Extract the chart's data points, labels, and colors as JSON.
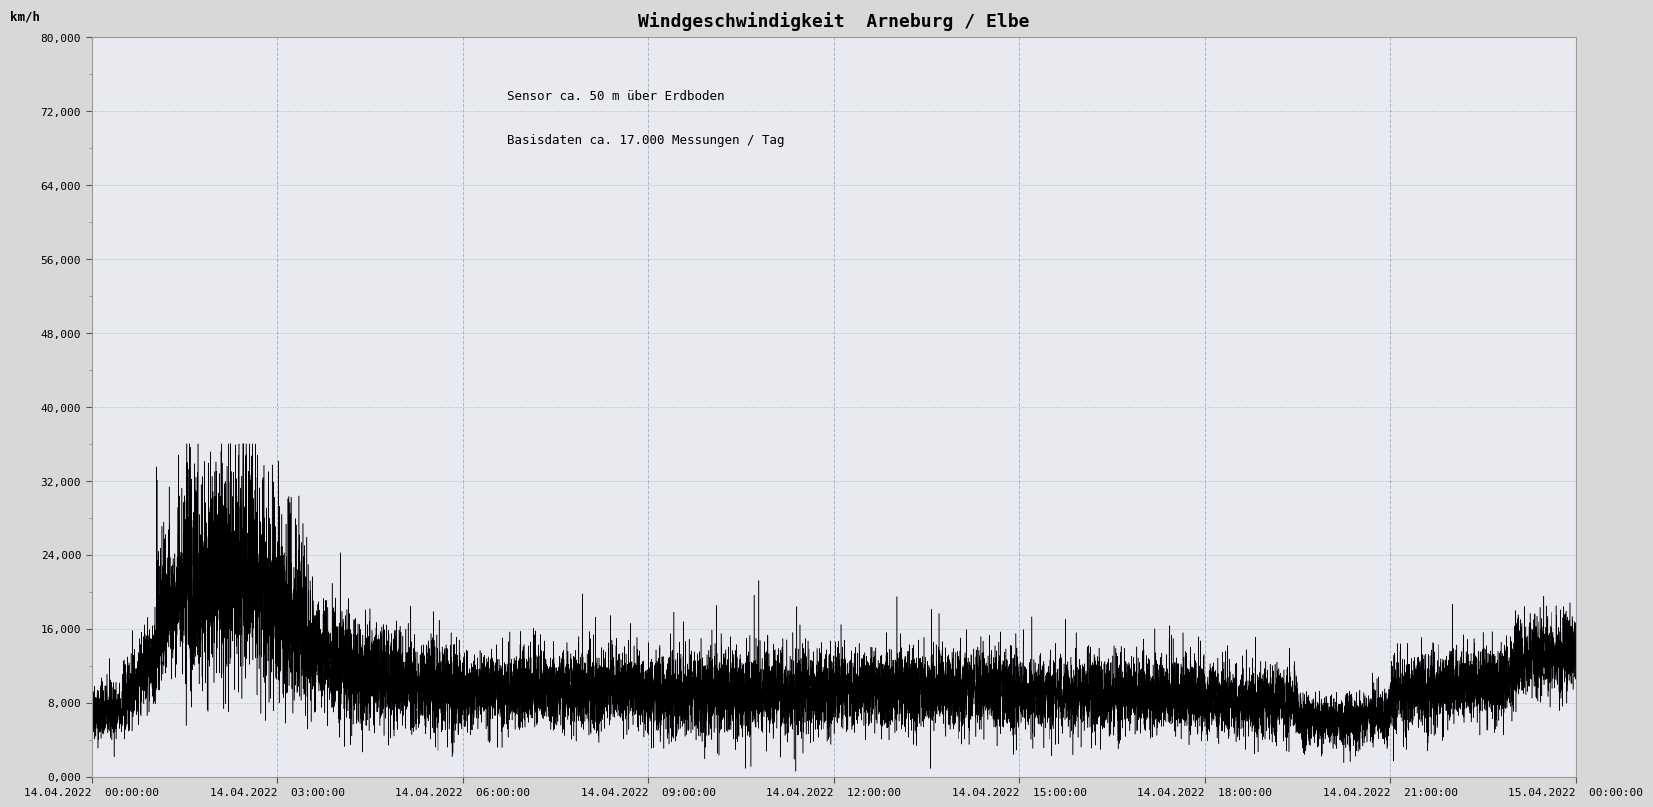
{
  "title": "Windgeschwindigkeit  Arneburg / Elbe",
  "annotation_line1": "Sensor ca. 50 m über Erdboden",
  "annotation_line2": "Basisdaten ca. 17.000 Messungen / Tag",
  "ylabel": "km/h",
  "ylim": [
    0,
    80000
  ],
  "yticks": [
    0,
    8000,
    16000,
    24000,
    32000,
    40000,
    48000,
    56000,
    64000,
    72000,
    80000
  ],
  "ytick_labels": [
    "0,000",
    "8,000",
    "16,000",
    "24,000",
    "32,000",
    "40,000",
    "48,000",
    "56,000",
    "64,000",
    "72,000",
    "80,000"
  ],
  "xtick_labels": [
    "14.04.2022  00:00:00",
    "14.04.2022  03:00:00",
    "14.04.2022  06:00:00",
    "14.04.2022  09:00:00",
    "14.04.2022  12:00:00",
    "14.04.2022  15:00:00",
    "14.04.2022  18:00:00",
    "14.04.2022  21:00:00",
    "15.04.2022  00:00:00"
  ],
  "n_points": 17280,
  "line_color": "#000000",
  "background_color": "#d8d8d8",
  "plot_bg_color": "#e8eaf0",
  "grid_color": "#a0a8b8",
  "title_fontsize": 13,
  "annotation_fontsize": 9,
  "tick_fontsize": 8,
  "ylabel_fontsize": 9,
  "seed": 42
}
